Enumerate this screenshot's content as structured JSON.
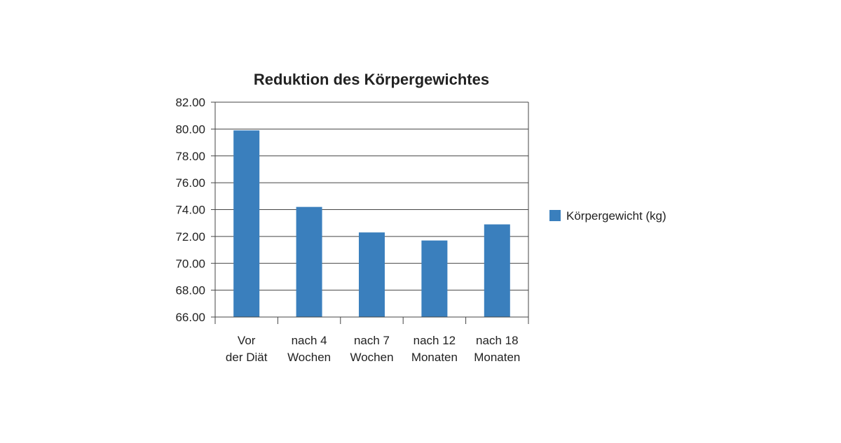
{
  "chart_data": {
    "type": "bar",
    "title": "Reduktion des Körpergewichtes",
    "xlabel": "",
    "ylabel": "",
    "ylim": [
      66,
      82
    ],
    "y_ticks": [
      "66.00",
      "68.00",
      "70.00",
      "72.00",
      "74.00",
      "76.00",
      "78.00",
      "80.00",
      "82.00"
    ],
    "categories": [
      [
        "Vor",
        "der Diät"
      ],
      [
        "nach 4",
        "Wochen"
      ],
      [
        "nach 7",
        "Wochen"
      ],
      [
        "nach 12",
        "Monaten"
      ],
      [
        "nach 18",
        "Monaten"
      ]
    ],
    "series": [
      {
        "name": "Körpergewicht (kg)",
        "color": "#3a7fbd",
        "values": [
          79.9,
          74.2,
          72.3,
          71.7,
          72.9
        ]
      }
    ],
    "grid": true,
    "legend_position": "right"
  }
}
